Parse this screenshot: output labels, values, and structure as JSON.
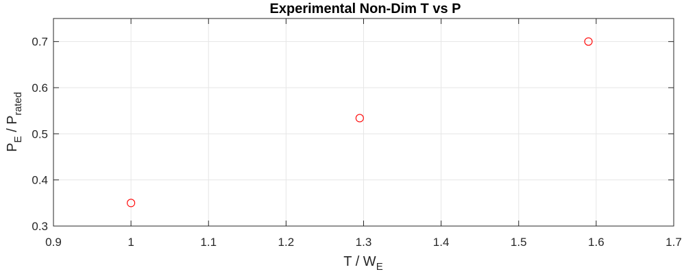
{
  "chart_data": {
    "type": "scatter",
    "title": "Experimental Non-Dim T vs P",
    "xlabel": {
      "base": "T / W",
      "sub": "E"
    },
    "ylabel": {
      "base1": "P",
      "sub1": "E",
      "mid": " / P",
      "sub2": "rated"
    },
    "xlim": [
      0.9,
      1.7
    ],
    "ylim": [
      0.3,
      0.75
    ],
    "xticks": [
      0.9,
      1.0,
      1.1,
      1.2,
      1.3,
      1.4,
      1.5,
      1.6,
      1.7
    ],
    "xtick_labels": [
      "0.9",
      "1",
      "1.1",
      "1.2",
      "1.3",
      "1.4",
      "1.5",
      "1.6",
      "1.7"
    ],
    "yticks": [
      0.3,
      0.4,
      0.5,
      0.6,
      0.7
    ],
    "ytick_labels": [
      "0.3",
      "0.4",
      "0.5",
      "0.6",
      "0.7"
    ],
    "grid": true,
    "series": [
      {
        "marker": "circle-open",
        "color": "#ff0000",
        "x": [
          1.0,
          1.295,
          1.59
        ],
        "y": [
          0.35,
          0.534,
          0.7
        ]
      }
    ]
  }
}
